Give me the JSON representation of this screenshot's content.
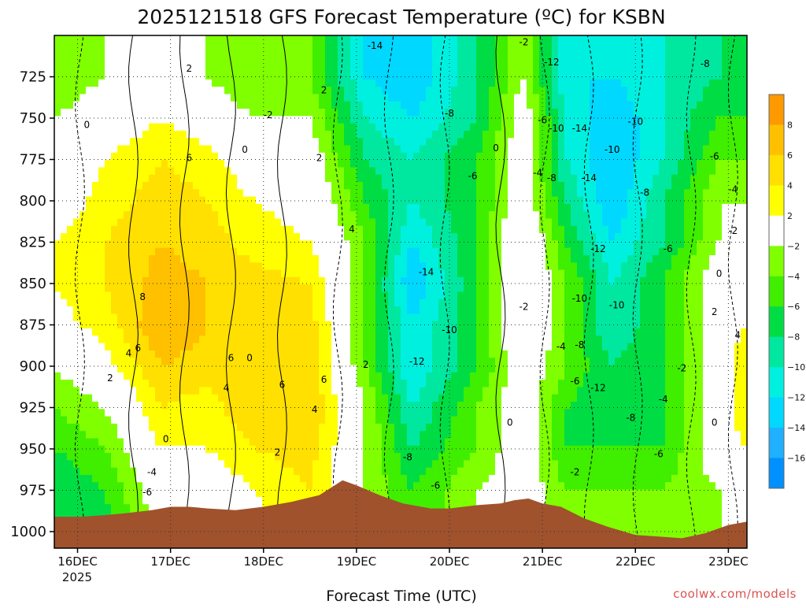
{
  "chart_data": {
    "type": "heatmap",
    "title": "2025121518 GFS Forecast Temperature (ºC) for KSBN",
    "xlabel": "Forecast Time (UTC)",
    "ylabel": "",
    "credit": "coolwx.com/models",
    "x_ticks": [
      "16DEC",
      "17DEC",
      "18DEC",
      "19DEC",
      "20DEC",
      "21DEC",
      "22DEC",
      "23DEC"
    ],
    "x_year": "2025",
    "y_ticks": [
      725,
      750,
      775,
      800,
      825,
      850,
      875,
      900,
      925,
      950,
      975,
      1000
    ],
    "y_range": [
      700,
      1010
    ],
    "x_range": [
      -0.25,
      7.2
    ],
    "grid": true,
    "colorbar": {
      "labels": [
        "8",
        "6",
        "4",
        "2",
        "−2",
        "−4",
        "−6",
        "−8",
        "−10",
        "−12",
        "−14",
        "−16"
      ],
      "colors": [
        "#ff9900",
        "#ffc000",
        "#ffe000",
        "#ffff00",
        "#ffffff",
        "#80ff00",
        "#40ee00",
        "#00dd44",
        "#00e8a0",
        "#00f0e0",
        "#00d8ff",
        "#20b0ff",
        "#0090ff"
      ]
    },
    "x_days": [
      -0.25,
      0.05,
      0.3,
      0.5,
      0.8,
      1.0,
      1.2,
      1.4,
      1.7,
      2.0,
      2.3,
      2.6,
      2.85,
      3.0,
      3.25,
      3.5,
      3.8,
      4.0,
      4.3,
      4.55,
      4.7,
      4.85,
      5.0,
      5.2,
      5.45,
      5.7,
      6.0,
      6.25,
      6.5,
      6.75,
      7.0,
      7.2
    ],
    "surface_pressure": [
      991,
      991,
      990,
      989,
      987,
      985,
      985,
      986,
      987,
      985,
      982,
      978,
      969,
      972,
      978,
      983,
      986,
      986,
      984,
      983,
      981,
      980,
      983,
      985,
      992,
      997,
      1002,
      1003,
      1004,
      1001,
      996,
      994
    ],
    "temperature_profiles": [
      {
        "day": -0.25,
        "temps": [
          -4,
          -2,
          -1,
          0,
          2,
          2,
          1,
          -2,
          -4,
          -6,
          -8,
          -8
        ]
      },
      {
        "day": 0.3,
        "temps": [
          -2,
          0,
          2,
          3,
          4,
          4,
          3,
          1,
          -2,
          -4,
          -6,
          -7
        ]
      },
      {
        "day": 0.9,
        "temps": [
          0,
          2,
          4,
          5,
          6,
          7,
          8,
          6,
          4,
          2,
          0,
          -1
        ]
      },
      {
        "day": 1.4,
        "temps": [
          -2,
          0,
          3,
          4,
          5,
          6,
          6,
          5,
          3,
          2,
          0,
          0
        ]
      },
      {
        "day": 1.9,
        "temps": [
          -4,
          -2,
          0,
          2,
          3,
          5,
          6,
          6,
          6,
          4,
          2,
          1
        ]
      },
      {
        "day": 2.5,
        "temps": [
          -4,
          -2,
          0,
          1,
          2,
          4,
          5,
          5,
          6,
          5,
          4,
          4
        ]
      },
      {
        "day": 3.1,
        "temps": [
          -12,
          -10,
          -8,
          -6,
          -4,
          -4,
          -4,
          -4,
          -2,
          -2,
          -2,
          -2
        ]
      },
      {
        "day": 3.6,
        "temps": [
          -14,
          -12,
          -10,
          -10,
          -12,
          -14,
          -12,
          -12,
          -10,
          -8,
          -6,
          -6
        ]
      },
      {
        "day": 4.3,
        "temps": [
          -8,
          -8,
          -6,
          -6,
          -6,
          -6,
          -6,
          -6,
          -4,
          -4,
          -2,
          -2
        ]
      },
      {
        "day": 4.8,
        "temps": [
          -2,
          0,
          0,
          0,
          2,
          2,
          2,
          0,
          0,
          0,
          0,
          0
        ]
      },
      {
        "day": 5.25,
        "temps": [
          -12,
          -10,
          -10,
          -8,
          -6,
          -4,
          -4,
          -4,
          -6,
          -6,
          -4,
          -4
        ]
      },
      {
        "day": 5.75,
        "temps": [
          -12,
          -14,
          -14,
          -14,
          -12,
          -10,
          -10,
          -8,
          -8,
          -6,
          -4,
          -4
        ]
      },
      {
        "day": 6.3,
        "temps": [
          -10,
          -10,
          -10,
          -8,
          -8,
          -6,
          -6,
          -6,
          -6,
          -6,
          -4,
          -4
        ]
      },
      {
        "day": 6.9,
        "temps": [
          -8,
          -6,
          -4,
          -2,
          -2,
          0,
          0,
          0,
          0,
          0,
          -2,
          -2
        ]
      },
      {
        "day": 7.2,
        "temps": [
          -8,
          -6,
          -4,
          -2,
          0,
          0,
          2,
          4,
          4,
          2,
          0,
          0
        ]
      }
    ],
    "contour_labels": [
      {
        "text": "-14",
        "x": 3.2,
        "y": 708
      },
      {
        "text": "-2",
        "x": 4.8,
        "y": 706
      },
      {
        "text": "-12",
        "x": 5.1,
        "y": 718
      },
      {
        "text": "-8",
        "x": 6.75,
        "y": 719
      },
      {
        "text": "2",
        "x": 1.2,
        "y": 722
      },
      {
        "text": "2",
        "x": 2.65,
        "y": 735
      },
      {
        "text": "0",
        "x": 0.1,
        "y": 756
      },
      {
        "text": "-2",
        "x": 2.05,
        "y": 750
      },
      {
        "text": "-8",
        "x": 4.0,
        "y": 749
      },
      {
        "text": "-6",
        "x": 5.0,
        "y": 753
      },
      {
        "text": "-10",
        "x": 5.15,
        "y": 758
      },
      {
        "text": "-14",
        "x": 5.4,
        "y": 758
      },
      {
        "text": "-10",
        "x": 6.0,
        "y": 754
      },
      {
        "text": "6",
        "x": 1.2,
        "y": 776
      },
      {
        "text": "0",
        "x": 1.8,
        "y": 771
      },
      {
        "text": "2",
        "x": 2.6,
        "y": 776
      },
      {
        "text": "0",
        "x": 4.5,
        "y": 770
      },
      {
        "text": "-10",
        "x": 5.75,
        "y": 771
      },
      {
        "text": "-6",
        "x": 6.85,
        "y": 775
      },
      {
        "text": "-6",
        "x": 4.25,
        "y": 787
      },
      {
        "text": "-4",
        "x": 4.95,
        "y": 785
      },
      {
        "text": "-8",
        "x": 5.1,
        "y": 788
      },
      {
        "text": "-14",
        "x": 5.5,
        "y": 788
      },
      {
        "text": "-8",
        "x": 6.1,
        "y": 797
      },
      {
        "text": "-4",
        "x": 7.05,
        "y": 795
      },
      {
        "text": "4",
        "x": 2.95,
        "y": 819
      },
      {
        "text": "-2",
        "x": 7.05,
        "y": 820
      },
      {
        "text": "-12",
        "x": 5.6,
        "y": 831
      },
      {
        "text": "-6",
        "x": 6.35,
        "y": 831
      },
      {
        "text": "-14",
        "x": 3.75,
        "y": 845
      },
      {
        "text": "0",
        "x": 6.9,
        "y": 846
      },
      {
        "text": "8",
        "x": 0.7,
        "y": 860
      },
      {
        "text": "-10",
        "x": 5.4,
        "y": 861
      },
      {
        "text": "-10",
        "x": 5.8,
        "y": 865
      },
      {
        "text": "-2",
        "x": 4.8,
        "y": 866
      },
      {
        "text": "2",
        "x": 6.85,
        "y": 869
      },
      {
        "text": "-10",
        "x": 4.0,
        "y": 880
      },
      {
        "text": "4",
        "x": 7.1,
        "y": 883
      },
      {
        "text": "4",
        "x": 0.55,
        "y": 894
      },
      {
        "text": "6",
        "x": 0.65,
        "y": 891
      },
      {
        "text": "-4",
        "x": 5.2,
        "y": 890
      },
      {
        "text": "-8",
        "x": 5.4,
        "y": 889
      },
      {
        "text": "0",
        "x": 1.85,
        "y": 897
      },
      {
        "text": "6",
        "x": 1.65,
        "y": 897
      },
      {
        "text": "2",
        "x": 0.35,
        "y": 909
      },
      {
        "text": "-12",
        "x": 3.65,
        "y": 899
      },
      {
        "text": "2",
        "x": 3.1,
        "y": 901
      },
      {
        "text": "-2",
        "x": 6.5,
        "y": 903
      },
      {
        "text": "4",
        "x": 1.6,
        "y": 915
      },
      {
        "text": "6",
        "x": 2.2,
        "y": 913
      },
      {
        "text": "6",
        "x": 2.65,
        "y": 910
      },
      {
        "text": "-6",
        "x": 5.35,
        "y": 911
      },
      {
        "text": "-12",
        "x": 5.6,
        "y": 915
      },
      {
        "text": "-4",
        "x": 6.3,
        "y": 922
      },
      {
        "text": "4",
        "x": 2.55,
        "y": 928
      },
      {
        "text": "-8",
        "x": 5.95,
        "y": 933
      },
      {
        "text": "0",
        "x": 4.65,
        "y": 936
      },
      {
        "text": "0",
        "x": 6.85,
        "y": 936
      },
      {
        "text": "0",
        "x": 0.95,
        "y": 946
      },
      {
        "text": "2",
        "x": 2.15,
        "y": 954
      },
      {
        "text": "-6",
        "x": 6.25,
        "y": 955
      },
      {
        "text": "-8",
        "x": 3.55,
        "y": 957
      },
      {
        "text": "-4",
        "x": 0.8,
        "y": 966
      },
      {
        "text": "-2",
        "x": 5.35,
        "y": 966
      },
      {
        "text": "-6",
        "x": 0.75,
        "y": 978
      },
      {
        "text": "-6",
        "x": 3.85,
        "y": 974
      }
    ]
  }
}
